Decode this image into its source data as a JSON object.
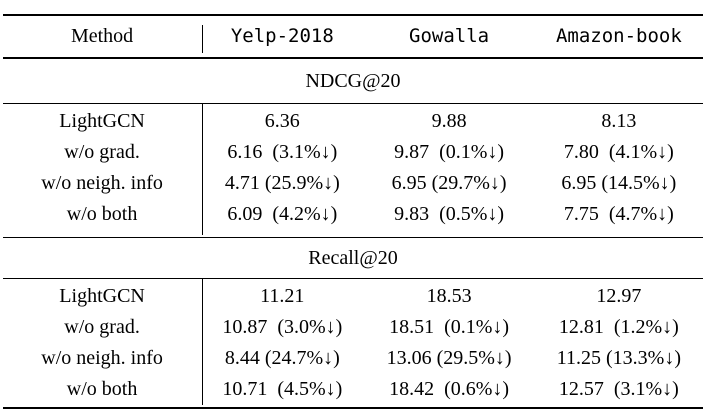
{
  "table": {
    "columns": {
      "method": "Method",
      "datasets": [
        "Yelp-2018",
        "Gowalla",
        "Amazon-book"
      ]
    },
    "sections": [
      {
        "title": "NDCG@20",
        "rows": [
          {
            "label": "LightGCN",
            "values": [
              "6.36",
              "9.88",
              "8.13"
            ]
          },
          {
            "label": "w/o grad.",
            "values": [
              "6.16  (3.1%↓)",
              "9.87  (0.1%↓)",
              "7.80  (4.1%↓)"
            ]
          },
          {
            "label": "w/o neigh. info",
            "values": [
              "4.71 (25.9%↓)",
              "6.95 (29.7%↓)",
              "6.95 (14.5%↓)"
            ]
          },
          {
            "label": "w/o both",
            "values": [
              "6.09  (4.2%↓)",
              "9.83  (0.5%↓)",
              "7.75  (4.7%↓)"
            ]
          }
        ]
      },
      {
        "title": "Recall@20",
        "rows": [
          {
            "label": "LightGCN",
            "values": [
              "11.21",
              "18.53",
              "12.97"
            ]
          },
          {
            "label": "w/o grad.",
            "values": [
              "10.87  (3.0%↓)",
              "18.51  (0.1%↓)",
              "12.81  (1.2%↓)"
            ]
          },
          {
            "label": "w/o neigh. info",
            "values": [
              "8.44 (24.7%↓)",
              "13.06 (29.5%↓)",
              "11.25 (13.3%↓)"
            ]
          },
          {
            "label": "w/o both",
            "values": [
              "10.71  (4.5%↓)",
              "18.42  (0.6%↓)",
              "12.57  (3.1%↓)"
            ]
          }
        ]
      }
    ],
    "colors": {
      "text": "#000000",
      "background": "#ffffff",
      "rule": "#000000"
    }
  }
}
